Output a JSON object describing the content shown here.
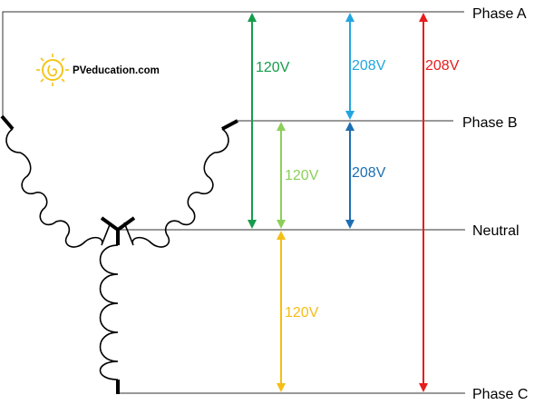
{
  "logo": {
    "text": "PVeducation.com",
    "sun_color": "#f5c518"
  },
  "lines": {
    "phase_a": "Phase A",
    "phase_b": "Phase B",
    "neutral": "Neutral",
    "phase_c": "Phase C"
  },
  "voltages": {
    "a_to_neutral": {
      "label": "120V",
      "color": "#169c4c"
    },
    "b_to_neutral": {
      "label": "120V",
      "color": "#8ccf5a"
    },
    "neutral_to_c": {
      "label": "120V",
      "color": "#f5be16"
    },
    "a_to_b": {
      "label": "208V",
      "color": "#22a6e0"
    },
    "b_to_neutral_line": {
      "label": "208V",
      "color": "#1d6fb3"
    },
    "a_to_c": {
      "label": "208V",
      "color": "#e81c1c"
    }
  }
}
